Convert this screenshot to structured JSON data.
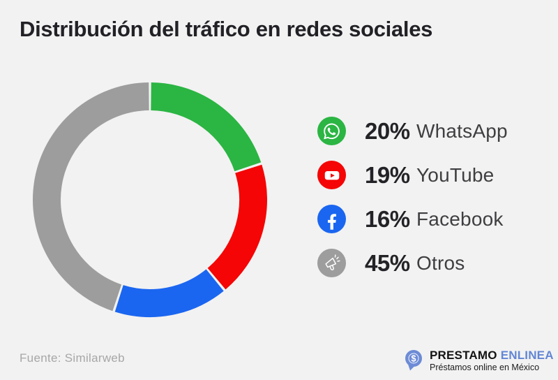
{
  "title": "Distribución del tráfico en redes sociales",
  "chart_data": {
    "type": "pie",
    "subtype": "donut",
    "title": "Distribución del tráfico en redes sociales",
    "categories": [
      "WhatsApp",
      "YouTube",
      "Facebook",
      "Otros"
    ],
    "values": [
      20,
      19,
      16,
      45
    ],
    "unit": "%",
    "colors": [
      "#2bb543",
      "#f50505",
      "#1b66f0",
      "#9d9d9d"
    ],
    "start_angle_deg": 0,
    "direction": "clockwise",
    "donut_hole": true,
    "legend_position": "right",
    "source": "Similarweb"
  },
  "legend": {
    "items": [
      {
        "icon": "whatsapp-icon",
        "percent": "20%",
        "label": "WhatsApp",
        "color": "#2bb543"
      },
      {
        "icon": "youtube-icon",
        "percent": "19%",
        "label": "YouTube",
        "color": "#f50505"
      },
      {
        "icon": "facebook-icon",
        "percent": "16%",
        "label": "Facebook",
        "color": "#1b66f0"
      },
      {
        "icon": "megaphone-icon",
        "percent": "45%",
        "label": "Otros",
        "color": "#9d9d9d"
      }
    ]
  },
  "footer": {
    "source": "Fuente: Similarweb",
    "brand": {
      "name_primary": "PRESTAMO",
      "name_secondary": "ENLINEA",
      "tagline": "Préstamos online en México",
      "accent_color": "#6286d4",
      "bubble_color": "#6d8bd6"
    }
  }
}
